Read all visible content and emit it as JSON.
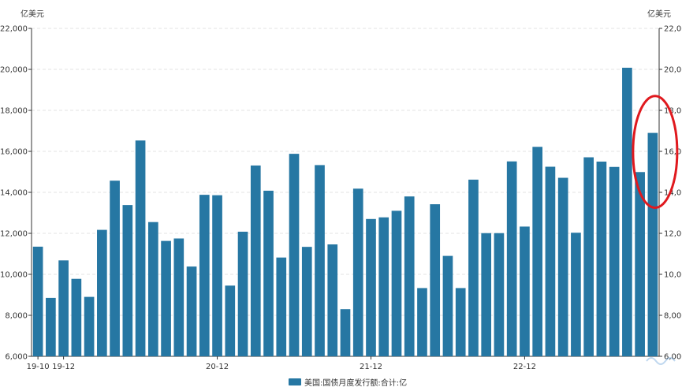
{
  "chart_data": {
    "type": "bar",
    "y_unit_left": "亿美元",
    "y_unit_right": "亿美元",
    "ylim": [
      6000,
      22000
    ],
    "y_ticks": [
      "6,000",
      "8,000",
      "10,000",
      "12,000",
      "14,000",
      "16,000",
      "18,000",
      "20,000",
      "22,000"
    ],
    "x_tick_labels": [
      {
        "label": "19-10",
        "index": 0
      },
      {
        "label": "19-12",
        "index": 2
      },
      {
        "label": "20-12",
        "index": 14
      },
      {
        "label": "21-12",
        "index": 26
      },
      {
        "label": "22-12",
        "index": 38
      }
    ],
    "grid": true,
    "legend_position": "bottom-center",
    "series": [
      {
        "name": "美国:国债月度发行额:合计:亿",
        "color": "#2677a3",
        "values": [
          11350,
          8850,
          10680,
          9780,
          8900,
          12170,
          14570,
          13380,
          16530,
          12550,
          11630,
          11750,
          10380,
          13880,
          13860,
          9450,
          12080,
          15310,
          14080,
          10820,
          15880,
          11340,
          15330,
          11460,
          8300,
          14180,
          12700,
          12780,
          13100,
          13800,
          9330,
          13420,
          10900,
          9330,
          14620,
          12010,
          12010,
          15510,
          12330,
          16220,
          15250,
          14710,
          12030,
          15710,
          15500,
          15240,
          20080,
          14990,
          16900
        ]
      }
    ],
    "annotation": {
      "shape": "ellipse",
      "color": "#e0191e",
      "target_index": 48
    }
  }
}
